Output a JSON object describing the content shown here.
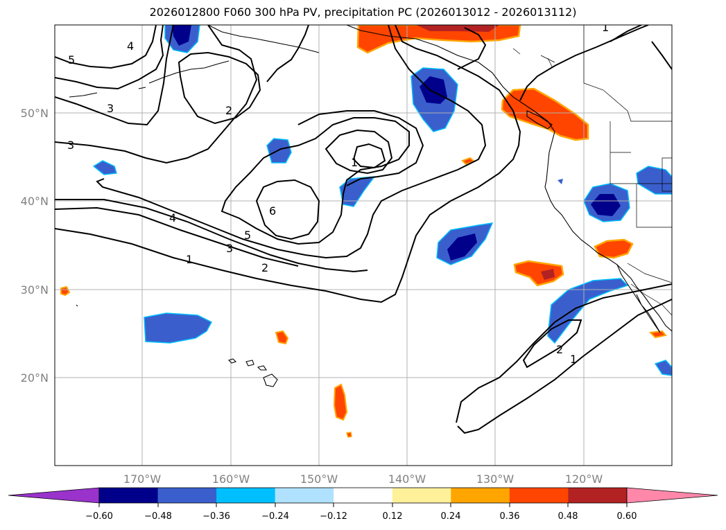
{
  "title": "2026012800 F060 300 hPa PV, precipitation PC (2026013012 - 2026013112)",
  "latitude_labels": [
    "50°N",
    "40°N",
    "30°N",
    "20°N"
  ],
  "longitude_labels": [
    "170°W",
    "160°W",
    "150°W",
    "140°W",
    "130°W",
    "120°W"
  ],
  "contour_labels": [
    "5",
    "4",
    "3",
    "3",
    "2",
    "1",
    "6",
    "5",
    "4",
    "3",
    "2",
    "1",
    "1",
    "2",
    "1"
  ],
  "colorbar": {
    "ticks": [
      "−0.60",
      "−0.48",
      "−0.36",
      "−0.24",
      "−0.12",
      "0.12",
      "0.24",
      "0.36",
      "0.48",
      "0.60"
    ],
    "colors": [
      "#9933cc",
      "#00008b",
      "#3a5fcd",
      "#00bfff",
      "#b0e2ff",
      "#ffffff",
      "#fff09a",
      "#ffa500",
      "#ff4500",
      "#b22222",
      "#ff88aa"
    ]
  }
}
